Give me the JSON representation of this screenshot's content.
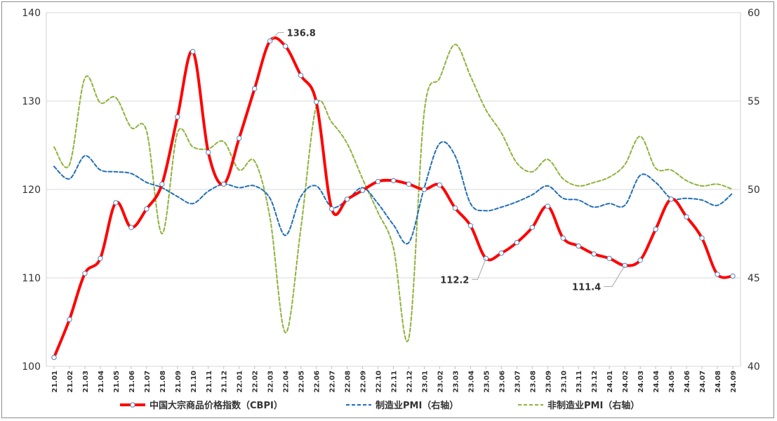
{
  "chart_data": {
    "type": "line",
    "categories": [
      "21.01",
      "21.02",
      "21.03",
      "21.04",
      "21.05",
      "21.06",
      "21.07",
      "21.08",
      "21.09",
      "21.10",
      "21.11",
      "21.12",
      "22.01",
      "22.02",
      "22.03",
      "22.04",
      "22.05",
      "22.06",
      "22.07",
      "22.08",
      "22.09",
      "22.10",
      "22.11",
      "22.12",
      "23.01",
      "23.02",
      "23.03",
      "23.04",
      "23.05",
      "23.06",
      "23.07",
      "23.08",
      "23.09",
      "23.10",
      "23.11",
      "23.12",
      "24.01",
      "24.02",
      "24.03",
      "24.04",
      "24.05",
      "24.06",
      "24.07",
      "24.08",
      "24.09"
    ],
    "left_axis": {
      "min": 100,
      "max": 140,
      "ticks": [
        "100",
        "110",
        "120",
        "130",
        "140"
      ]
    },
    "right_axis": {
      "min": 40,
      "max": 60,
      "ticks": [
        "40",
        "45",
        "50",
        "55",
        "60"
      ]
    },
    "series": [
      {
        "name": "中国大宗商品价格指数（CBPI）",
        "axis": "left",
        "color": "#ff0000",
        "style": "solid",
        "markers": true,
        "values": [
          101.0,
          105.3,
          110.5,
          112.2,
          118.5,
          115.7,
          117.8,
          120.6,
          128.2,
          135.6,
          124.2,
          120.6,
          125.8,
          131.4,
          136.8,
          136.2,
          132.9,
          129.9,
          117.8,
          118.9,
          119.9,
          120.9,
          121.0,
          120.6,
          120.0,
          120.5,
          117.9,
          115.9,
          112.2,
          112.8,
          114.0,
          115.7,
          118.1,
          114.5,
          113.6,
          112.7,
          112.2,
          111.4,
          112.0,
          115.5,
          118.9,
          116.9,
          114.5,
          110.4,
          110.2
        ]
      },
      {
        "name": "制造业PMI（右轴）",
        "axis": "right",
        "color": "#1f6eb8",
        "style": "dashed",
        "markers": false,
        "values": [
          51.3,
          50.6,
          51.9,
          51.1,
          51.0,
          50.9,
          50.4,
          50.1,
          49.6,
          49.2,
          49.9,
          50.3,
          50.1,
          50.2,
          49.5,
          47.4,
          49.6,
          50.2,
          49.0,
          49.4,
          50.1,
          49.2,
          48.0,
          47.0,
          50.1,
          52.6,
          51.9,
          49.2,
          48.8,
          49.0,
          49.3,
          49.7,
          50.2,
          49.5,
          49.4,
          49.0,
          49.2,
          49.1,
          50.8,
          50.4,
          49.5,
          49.5,
          49.4,
          49.1,
          49.8
        ]
      },
      {
        "name": "非制造业PMI（右轴）",
        "axis": "right",
        "color": "#8db33a",
        "style": "dashed",
        "markers": false,
        "values": [
          52.4,
          51.4,
          56.3,
          54.9,
          55.2,
          53.5,
          53.3,
          47.5,
          53.2,
          52.4,
          52.3,
          52.7,
          51.1,
          51.6,
          48.4,
          41.9,
          47.8,
          54.7,
          53.8,
          52.6,
          50.6,
          48.7,
          46.7,
          41.6,
          54.4,
          56.3,
          58.2,
          56.4,
          54.5,
          53.2,
          51.5,
          51.0,
          51.7,
          50.6,
          50.2,
          50.4,
          50.7,
          51.4,
          53.0,
          51.2,
          51.1,
          50.5,
          50.2,
          50.3,
          50.0
        ]
      }
    ],
    "annotations": [
      {
        "text": "136.8",
        "index": 14,
        "series": 0
      },
      {
        "text": "112.2",
        "index": 28,
        "series": 0
      },
      {
        "text": "111.4",
        "index": 37,
        "series": 0
      }
    ],
    "legend": {
      "position": "bottom"
    },
    "grid": {
      "horizontal": true,
      "vertical": false
    }
  }
}
